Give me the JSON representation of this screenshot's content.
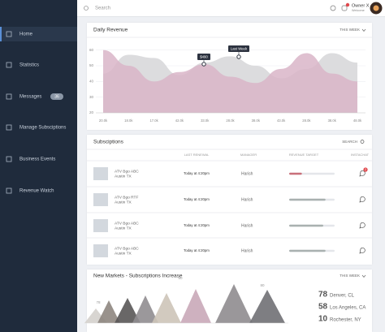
{
  "sidebar": {
    "items": [
      {
        "label": "Home"
      },
      {
        "label": "Statistics"
      },
      {
        "label": "Messages",
        "badge": "36"
      },
      {
        "label": "Manage Subsciptions"
      },
      {
        "label": "Business Events"
      },
      {
        "label": "Revenue Watch"
      }
    ]
  },
  "topbar": {
    "search_placeholder": "Search",
    "user_name": "Owner X",
    "user_subtitle": "Welcome"
  },
  "revenue_card": {
    "title": "Daily Revenue",
    "period": "THIS WEEK"
  },
  "chart_data": {
    "type": "area",
    "categories": [
      "20.0k",
      "18.0k",
      "17.0k",
      "42.0k",
      "33.0k",
      "28.0k",
      "38.0k",
      "43.0k",
      "28.0k",
      "38.0k",
      "48.0k"
    ],
    "series": [
      {
        "color": "#dcdcde",
        "values": [
          45,
          57,
          55,
          44,
          52,
          56,
          50,
          42,
          48,
          58,
          52
        ]
      },
      {
        "color": "#d9b5c8",
        "values": [
          60,
          50,
          40,
          46,
          51,
          43,
          39,
          48,
          58,
          45,
          40
        ]
      }
    ],
    "ylim": [
      20,
      65
    ],
    "yticks": [
      20,
      30,
      40,
      50,
      60
    ],
    "grid": true,
    "annotations": [
      "$490",
      "Last Week"
    ]
  },
  "subscriptions": {
    "title": "Subsciptions",
    "search": "SEARCH",
    "columns": [
      "LAST RENEWAL",
      "MANAGER",
      "REVENUE TARGET",
      "INSTACHAT"
    ],
    "rows": [
      {
        "name": "ATV Bgo ABC",
        "location": "Austin TX",
        "last_renewal": "Today at 4:20pm",
        "manager": "Harish",
        "revenue_target": 28,
        "chat_badge": "2"
      },
      {
        "name": "ATV Bgo RTF",
        "location": "Austin TX",
        "last_renewal": "Today at 4:20pm",
        "manager": "Harish",
        "revenue_target": 80
      },
      {
        "name": "ATV Bgo ABC",
        "location": "Austin TX",
        "last_renewal": "Today at 4:20pm",
        "manager": "Harish",
        "revenue_target": 75
      },
      {
        "name": "ATV Bgo ABC",
        "location": "Austin TX",
        "last_renewal": "Today at 4:20pm",
        "manager": "Harish",
        "revenue_target": 80
      }
    ]
  },
  "markets": {
    "title": "New Markets - Subscriptions Increase",
    "period": "THIS WEEK",
    "peak_labels": [
      "78",
      "80",
      "80"
    ],
    "cities": [
      {
        "count": 78,
        "name": "Denver, CL"
      },
      {
        "count": 58,
        "name": "Los Angeles, CA"
      },
      {
        "count": 10,
        "name": "Rochester, NY"
      }
    ]
  }
}
